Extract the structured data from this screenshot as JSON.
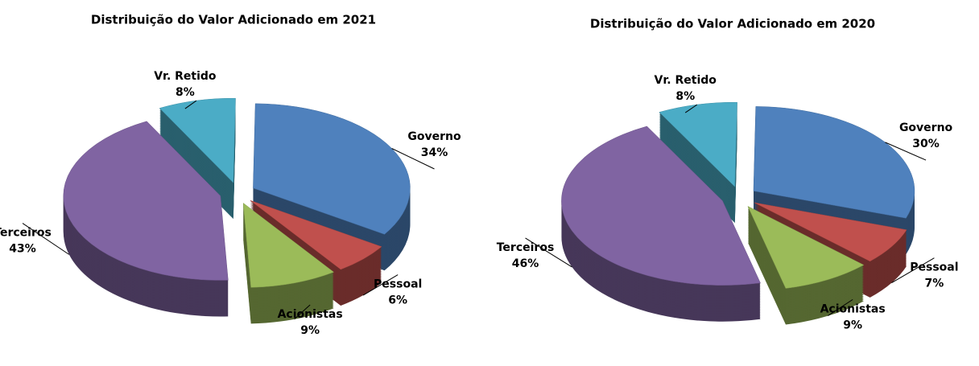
{
  "chart_data": [
    {
      "type": "pie",
      "title": "Distribuição do Valor Adicionado em 2021",
      "categories": [
        "Vr. Retido",
        "Governo",
        "Pessoal",
        "Acionistas",
        "Terceiros"
      ],
      "values": [
        8,
        34,
        6,
        9,
        43
      ],
      "value_labels": [
        "8%",
        "34%",
        "6%",
        "9%",
        "43%"
      ],
      "colors": [
        "#4bacc6",
        "#4f81bd",
        "#c0504d",
        "#9bbb59",
        "#8064a2"
      ]
    },
    {
      "type": "pie",
      "title": "Distribuição do Valor Adicionado em 2020",
      "categories": [
        "Vr. Retido",
        "Governo",
        "Pessoal",
        "Acionistas",
        "Terceiros"
      ],
      "values": [
        8,
        30,
        7,
        9,
        46
      ],
      "value_labels": [
        "8%",
        "30%",
        "7%",
        "9%",
        "46%"
      ],
      "colors": [
        "#4bacc6",
        "#4f81bd",
        "#c0504d",
        "#9bbb59",
        "#8064a2"
      ]
    }
  ]
}
